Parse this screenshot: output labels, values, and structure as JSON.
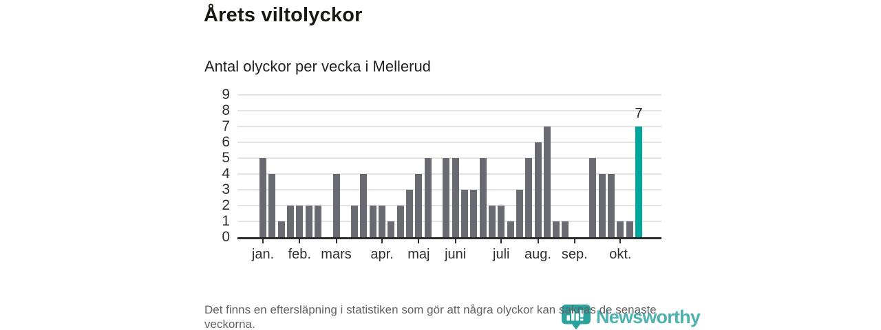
{
  "header": {
    "title": "Årets viltolyckor",
    "subtitle": "Antal olyckor per vecka i Mellerud"
  },
  "chart_data": {
    "type": "bar",
    "title": "Årets viltolyckor",
    "subtitle": "Antal olyckor per vecka i Mellerud",
    "xlabel": "",
    "ylabel": "",
    "x_unit": "vecka",
    "x": [
      1,
      2,
      3,
      4,
      5,
      6,
      7,
      8,
      9,
      10,
      11,
      12,
      13,
      14,
      15,
      16,
      17,
      18,
      19,
      20,
      21,
      22,
      23,
      24,
      25,
      26,
      27,
      28,
      29,
      30,
      31,
      32,
      33,
      34,
      35,
      36,
      37,
      38,
      39,
      40,
      41,
      42
    ],
    "values": [
      5,
      4,
      1,
      2,
      2,
      2,
      2,
      0,
      4,
      0,
      2,
      4,
      2,
      2,
      1,
      2,
      3,
      4,
      5,
      0,
      5,
      5,
      3,
      3,
      5,
      2,
      2,
      1,
      3,
      5,
      6,
      7,
      1,
      1,
      0,
      0,
      5,
      4,
      4,
      1,
      1,
      7
    ],
    "ylim": [
      0,
      9
    ],
    "yticks": [
      0,
      1,
      2,
      3,
      4,
      5,
      6,
      7,
      8,
      9
    ],
    "grid": true,
    "legend": null,
    "month_ticks": [
      {
        "label": "jan.",
        "week": 1
      },
      {
        "label": "feb.",
        "week": 5
      },
      {
        "label": "mars",
        "week": 9
      },
      {
        "label": "apr.",
        "week": 14
      },
      {
        "label": "maj",
        "week": 18
      },
      {
        "label": "juni",
        "week": 22
      },
      {
        "label": "juli",
        "week": 27
      },
      {
        "label": "aug.",
        "week": 31
      },
      {
        "label": "sep.",
        "week": 35
      },
      {
        "label": "okt.",
        "week": 40
      }
    ],
    "bar_color": "#6a6a72",
    "highlight": {
      "index": 41,
      "value_label": "7",
      "color": "#00a59c"
    }
  },
  "footer": {
    "note": "Det finns en eftersläpning i statistiken som gör att några olyckor kan saknas de senaste veckorna.",
    "brand": "Newsworthy"
  },
  "colors": {
    "accent_teal": "#00a59c",
    "bar_gray": "#6a6a72",
    "logo_teal": "#2fa5a0",
    "axis_dark": "#2d2d2d",
    "gridline": "#e3e3e3"
  }
}
